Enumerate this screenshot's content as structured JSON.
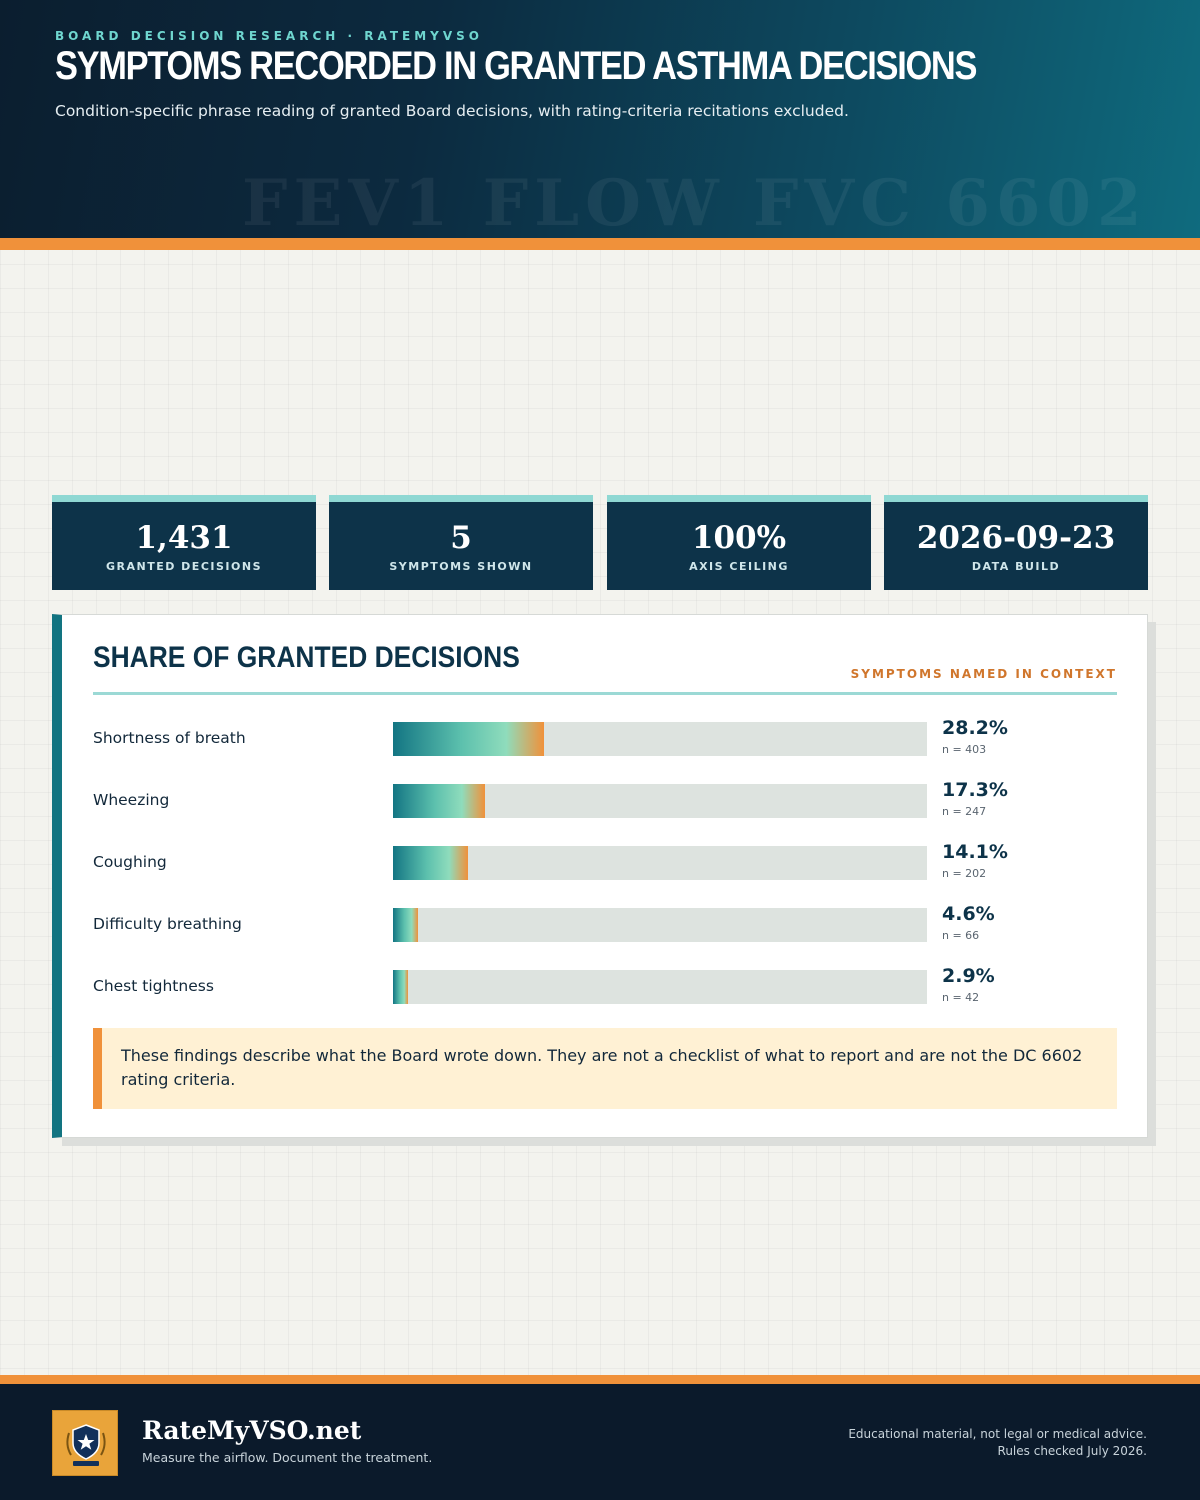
{
  "header": {
    "eyebrow": "BOARD DECISION RESEARCH · RATEMYVSO",
    "title": "SYMPTOMS RECORDED IN GRANTED ASTHMA DECISIONS",
    "subtitle": "Condition-specific phrase reading of granted Board decisions, with rating-criteria recitations excluded.",
    "watermark": "FEV1 FLOW FVC 6602"
  },
  "kpis": [
    {
      "value": "1,431",
      "label": "GRANTED DECISIONS"
    },
    {
      "value": "5",
      "label": "SYMPTOMS SHOWN"
    },
    {
      "value": "100%",
      "label": "AXIS CEILING"
    },
    {
      "value": "2026-09-23",
      "label": "DATA BUILD"
    }
  ],
  "panel": {
    "title": "SHARE OF GRANTED DECISIONS",
    "tag": "SYMPTOMS NAMED IN CONTEXT",
    "note": "These findings describe what the Board wrote down. They are not a checklist of what to report and are not the DC 6602 rating criteria."
  },
  "chart_data": {
    "type": "bar",
    "orientation": "horizontal",
    "title": "SHARE OF GRANTED DECISIONS",
    "xlim": [
      0,
      100
    ],
    "categories": [
      "Shortness of breath",
      "Wheezing",
      "Coughing",
      "Difficulty breathing",
      "Chest tightness"
    ],
    "values": [
      28.2,
      17.3,
      14.1,
      4.6,
      2.9
    ],
    "value_labels": [
      "28.2%",
      "17.3%",
      "14.1%",
      "4.6%",
      "2.9%"
    ],
    "counts": [
      "n = 403",
      "n = 247",
      "n = 202",
      "n = 66",
      "n = 42"
    ],
    "colors": {
      "start": "#137583",
      "mid": "#8fdcbc",
      "end": "#f0913a",
      "track": "#dde3df"
    }
  },
  "footer": {
    "brand": "RateMyVSO.net",
    "tagline": "Measure the airflow. Document the treatment.",
    "logo_icon": "shield-star-icon",
    "disclaimer_1": "Educational material, not legal or medical advice.",
    "disclaimer_2": "Rules checked July 2026."
  }
}
